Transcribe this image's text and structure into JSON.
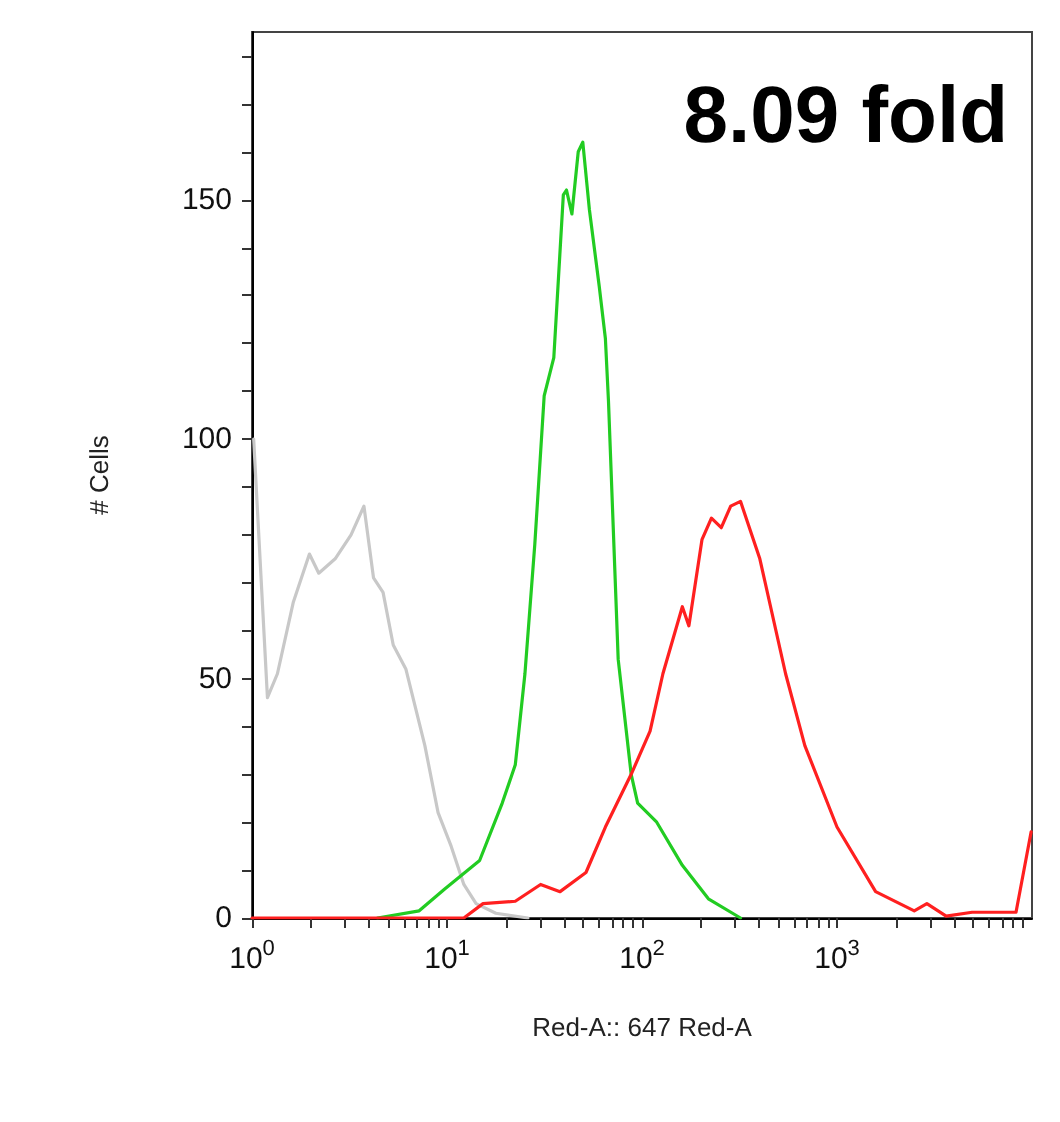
{
  "chart_data": {
    "type": "line",
    "xlabel": "Red-A:: 647 Red-A",
    "ylabel": "# Cells",
    "annotations": [
      "8.09 fold"
    ],
    "log": "x",
    "grid": false,
    "marker": "none",
    "xlim": [
      1,
      10000
    ],
    "ylim": [
      0,
      185
    ],
    "xticks": [
      {
        "value": 1,
        "label": "10$^{0}$"
      },
      {
        "value": 2,
        "label": null
      },
      {
        "value": 3,
        "label": null
      },
      {
        "value": 4,
        "label": null
      },
      {
        "value": 5,
        "label": null
      },
      {
        "value": 6,
        "label": null
      },
      {
        "value": 7,
        "label": null
      },
      {
        "value": 8,
        "label": null
      },
      {
        "value": 9,
        "label": null
      },
      {
        "value": 10,
        "label": "10$^{1}$"
      },
      {
        "value": 20,
        "label": null
      },
      {
        "value": 30,
        "label": null
      },
      {
        "value": 40,
        "label": null
      },
      {
        "value": 50,
        "label": null
      },
      {
        "value": 60,
        "label": null
      },
      {
        "value": 70,
        "label": null
      },
      {
        "value": 80,
        "label": null
      },
      {
        "value": 90,
        "label": null
      },
      {
        "value": 100,
        "label": "10$^{2}$"
      },
      {
        "value": 200,
        "label": null
      },
      {
        "value": 300,
        "label": null
      },
      {
        "value": 400,
        "label": null
      },
      {
        "value": 500,
        "label": null
      },
      {
        "value": 600,
        "label": null
      },
      {
        "value": 700,
        "label": null
      },
      {
        "value": 800,
        "label": null
      },
      {
        "value": 900,
        "label": null
      },
      {
        "value": 1000,
        "label": "10$^{3}$"
      },
      {
        "value": 2000,
        "label": null
      },
      {
        "value": 3000,
        "label": null
      },
      {
        "value": 4000,
        "label": null
      },
      {
        "value": 5000,
        "label": null
      },
      {
        "value": 6000,
        "label": null
      },
      {
        "value": 7000,
        "label": null
      },
      {
        "value": 8000,
        "label": null
      },
      {
        "value": 9000,
        "label": null
      }
    ],
    "yticks": [
      0,
      {
        "value": 10,
        "label": null
      },
      {
        "value": 20,
        "label": null
      },
      {
        "value": 30,
        "label": null
      },
      {
        "value": 40,
        "label": null
      },
      50,
      {
        "value": 60,
        "label": null
      },
      {
        "value": 70,
        "label": null
      },
      {
        "value": 80,
        "label": null
      },
      {
        "value": 90,
        "label": null
      },
      100,
      {
        "value": 110,
        "label": null
      },
      {
        "value": 120,
        "label": null
      },
      {
        "value": 130,
        "label": null
      },
      {
        "value": 140,
        "label": null
      },
      150,
      {
        "value": 160,
        "label": null
      },
      {
        "value": 170,
        "label": null
      },
      {
        "value": 180,
        "label": null
      }
    ],
    "series": [
      {
        "color": "#c8c8c8",
        "x": [
          1.02,
          1.2,
          1.35,
          1.63,
          1.97,
          2.2,
          2.67,
          3.22,
          3.75,
          4.2,
          4.7,
          5.3,
          6.15,
          7.7,
          9.0,
          10.5,
          12.2,
          14.1,
          17.8,
          26
        ],
        "values": [
          100,
          46,
          51,
          66,
          76,
          72,
          75,
          80,
          86,
          71,
          68,
          57,
          52,
          36,
          22,
          15,
          7,
          3,
          1,
          0
        ]
      },
      {
        "color": "#22cc22",
        "x": [
          4.4,
          7.2,
          9.7,
          14.7,
          19.2,
          22.4,
          25.1,
          28.2,
          31.5,
          35.3,
          39.5,
          41,
          43.7,
          47.1,
          49.7,
          53.7,
          60.3,
          64.9,
          67.3,
          75.5,
          88,
          95,
          119,
          161,
          219,
          320
        ],
        "values": [
          0,
          1.5,
          6,
          12,
          24,
          32,
          51,
          78,
          109,
          117,
          151,
          152,
          147,
          160,
          162,
          148,
          132,
          121,
          108,
          54,
          30,
          24,
          20,
          11,
          4,
          0
        ]
      },
      {
        "color": "#ff2020",
        "x": [
          1,
          7.2,
          12.2,
          15.3,
          22.4,
          30.2,
          38,
          51.6,
          64.9,
          88,
          110,
          128,
          161,
          174,
          203,
          227,
          255,
          285,
          320,
          402,
          545,
          684,
          1000,
          1578,
          2490,
          2890,
          3630,
          4930,
          8280,
          9900
        ],
        "values": [
          0,
          0,
          0,
          3,
          3.5,
          7,
          5.5,
          9.5,
          19,
          30,
          39,
          51,
          65,
          61,
          79,
          83.5,
          81.5,
          86,
          87,
          75,
          51,
          36,
          19,
          5.5,
          1.5,
          3,
          0.4,
          1.2,
          1.2,
          18
        ]
      }
    ]
  }
}
